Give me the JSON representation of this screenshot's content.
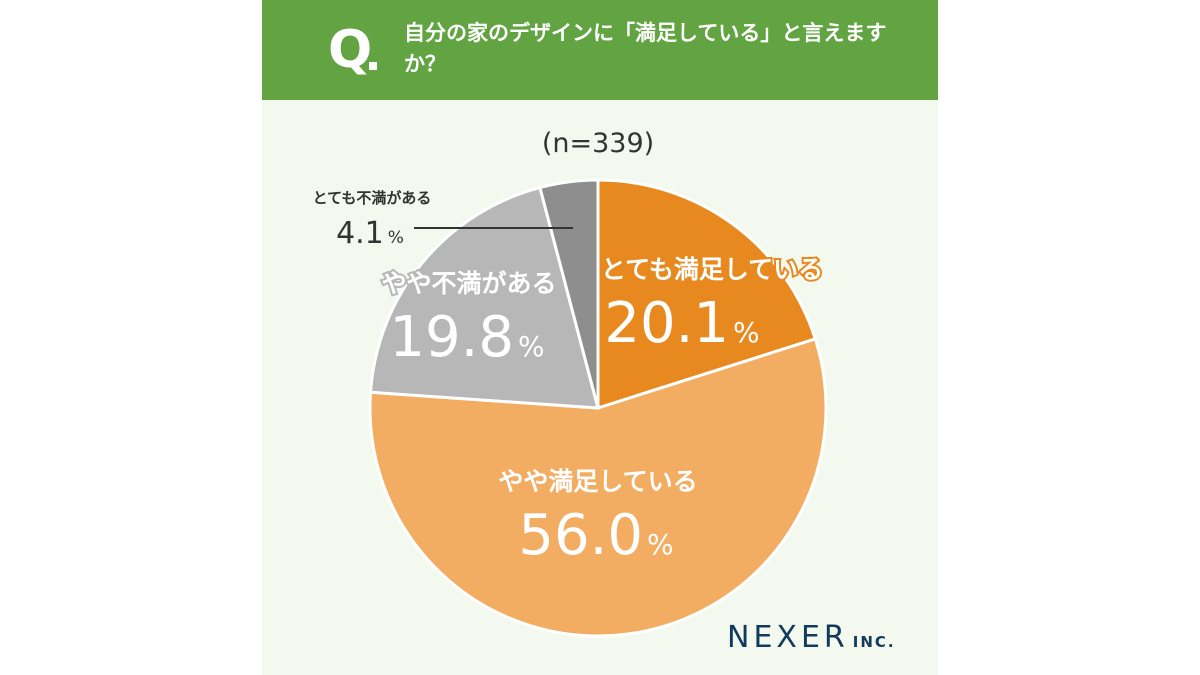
{
  "header": {
    "q_letter": "Q",
    "question": "自分の家のデザインに「満足している」と言えますか？"
  },
  "brand": {
    "main": "NEXER",
    "sub": "INC."
  },
  "chart_data": {
    "type": "pie",
    "sample_label": "(n=339)",
    "slices": [
      {
        "label": "とても満足している",
        "value": 20.1,
        "value_text": "20.1",
        "unit": "%",
        "color": "#e8891f",
        "label_color": "#ffffff",
        "label_stroke": "#e8891f"
      },
      {
        "label": "やや満足している",
        "value": 56.0,
        "value_text": "56.0",
        "unit": "%",
        "color": "#f2ad62",
        "label_color": "#ffffff",
        "label_stroke": "#f2ad62"
      },
      {
        "label": "やや不満がある",
        "value": 19.8,
        "value_text": "19.8",
        "unit": "%",
        "color": "#b7b7b7",
        "label_color": "#ffffff",
        "label_stroke": "#b7b7b7"
      },
      {
        "label": "とても不満がある",
        "value": 4.1,
        "value_text": "4.1",
        "unit": "%",
        "color": "#8e8e8e",
        "label_color": "#333333",
        "label_stroke": "none"
      }
    ]
  }
}
